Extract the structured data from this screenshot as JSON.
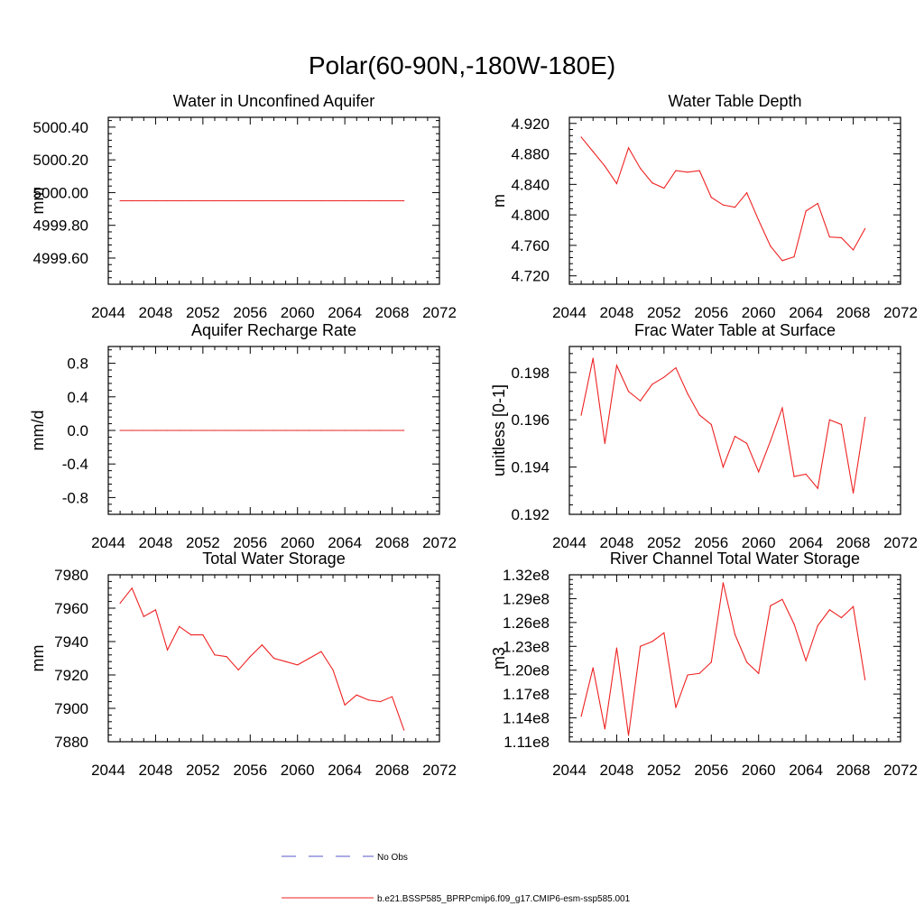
{
  "figure": {
    "title": "Polar(60-90N,-180W-180E)"
  },
  "chart_data": [
    {
      "type": "line",
      "title": "Water in Unconfined Aquifer",
      "xlabel": "",
      "ylabel": "mm",
      "xlim": [
        2044,
        2072
      ],
      "ylim": [
        4999.44,
        5000.46
      ],
      "xticks": [
        2044,
        2048,
        2052,
        2056,
        2060,
        2064,
        2068,
        2072
      ],
      "xtick_labels": [
        "2044",
        "2048",
        "2052",
        "2056",
        "2060",
        "2064",
        "2068",
        "2072"
      ],
      "yticks": [
        4999.6,
        4999.8,
        5000.0,
        5000.2,
        5000.4
      ],
      "ytick_labels": [
        "4999.60",
        "4999.80",
        "5000.00",
        "5000.20",
        "5000.40"
      ],
      "x": [
        2045,
        2046,
        2047,
        2048,
        2049,
        2050,
        2051,
        2052,
        2053,
        2054,
        2055,
        2056,
        2057,
        2058,
        2059,
        2060,
        2061,
        2062,
        2063,
        2064,
        2065,
        2066,
        2067,
        2068,
        2069
      ],
      "series": [
        {
          "values": [
            4999.95,
            4999.95,
            4999.95,
            4999.95,
            4999.95,
            4999.95,
            4999.95,
            4999.95,
            4999.95,
            4999.95,
            4999.95,
            4999.95,
            4999.95,
            4999.95,
            4999.95,
            4999.95,
            4999.95,
            4999.95,
            4999.95,
            4999.95,
            4999.95,
            4999.95,
            4999.95,
            4999.95,
            4999.95
          ]
        }
      ]
    },
    {
      "type": "line",
      "title": "Water Table Depth",
      "xlabel": "",
      "ylabel": "m",
      "xlim": [
        2044,
        2072
      ],
      "ylim": [
        4.709,
        4.928
      ],
      "xticks": [
        2044,
        2048,
        2052,
        2056,
        2060,
        2064,
        2068,
        2072
      ],
      "xtick_labels": [
        "2044",
        "2048",
        "2052",
        "2056",
        "2060",
        "2064",
        "2068",
        "2072"
      ],
      "yticks": [
        4.72,
        4.76,
        4.8,
        4.84,
        4.88,
        4.92
      ],
      "ytick_labels": [
        "4.720",
        "4.760",
        "4.800",
        "4.840",
        "4.880",
        "4.920"
      ],
      "x": [
        2045,
        2046,
        2047,
        2048,
        2049,
        2050,
        2051,
        2052,
        2053,
        2054,
        2055,
        2056,
        2057,
        2058,
        2059,
        2060,
        2061,
        2062,
        2063,
        2064,
        2065,
        2066,
        2067,
        2068,
        2069
      ],
      "series": [
        {
          "values": [
            4.902,
            4.883,
            4.864,
            4.841,
            4.888,
            4.861,
            4.842,
            4.835,
            4.858,
            4.856,
            4.858,
            4.823,
            4.813,
            4.81,
            4.829,
            4.793,
            4.759,
            4.74,
            4.745,
            4.805,
            4.815,
            4.771,
            4.77,
            4.754,
            4.782
          ]
        }
      ]
    },
    {
      "type": "line",
      "title": "Aquifer Recharge Rate",
      "xlabel": "",
      "ylabel": "mm/d",
      "xlim": [
        2044,
        2072
      ],
      "ylim": [
        -1.0,
        1.0
      ],
      "xticks": [
        2044,
        2048,
        2052,
        2056,
        2060,
        2064,
        2068,
        2072
      ],
      "xtick_labels": [
        "2044",
        "2048",
        "2052",
        "2056",
        "2060",
        "2064",
        "2068",
        "2072"
      ],
      "yticks": [
        -0.8,
        -0.4,
        0.0,
        0.4,
        0.8
      ],
      "ytick_labels": [
        "-0.8",
        "-0.4",
        "0.0",
        "0.4",
        "0.8"
      ],
      "x": [
        2045,
        2046,
        2047,
        2048,
        2049,
        2050,
        2051,
        2052,
        2053,
        2054,
        2055,
        2056,
        2057,
        2058,
        2059,
        2060,
        2061,
        2062,
        2063,
        2064,
        2065,
        2066,
        2067,
        2068,
        2069
      ],
      "series": [
        {
          "values": [
            0,
            0,
            0,
            0,
            0,
            0,
            0,
            0,
            0,
            0,
            0,
            0,
            0,
            0,
            0,
            0,
            0,
            0,
            0,
            0,
            0,
            0,
            0,
            0,
            0
          ]
        }
      ]
    },
    {
      "type": "line",
      "title": "Frac Water Table at Surface",
      "xlabel": "",
      "ylabel": "unitless [0-1]",
      "xlim": [
        2044,
        2072
      ],
      "ylim": [
        0.192,
        0.1991
      ],
      "xticks": [
        2044,
        2048,
        2052,
        2056,
        2060,
        2064,
        2068,
        2072
      ],
      "xtick_labels": [
        "2044",
        "2048",
        "2052",
        "2056",
        "2060",
        "2064",
        "2068",
        "2072"
      ],
      "yticks": [
        0.192,
        0.194,
        0.196,
        0.198
      ],
      "ytick_labels": [
        "0.192",
        "0.194",
        "0.196",
        "0.198"
      ],
      "x": [
        2045,
        2046,
        2047,
        2048,
        2049,
        2050,
        2051,
        2052,
        2053,
        2054,
        2055,
        2056,
        2057,
        2058,
        2059,
        2060,
        2061,
        2062,
        2063,
        2064,
        2065,
        2066,
        2067,
        2068,
        2069
      ],
      "series": [
        {
          "values": [
            0.1962,
            0.1986,
            0.195,
            0.1983,
            0.1972,
            0.1968,
            0.1975,
            0.1978,
            0.1982,
            0.1971,
            0.1962,
            0.1958,
            0.194,
            0.1953,
            0.195,
            0.1938,
            0.1951,
            0.1965,
            0.1936,
            0.1937,
            0.1931,
            0.196,
            0.1958,
            0.1929,
            0.1961
          ]
        }
      ]
    },
    {
      "type": "line",
      "title": "Total Water Storage",
      "xlabel": "",
      "ylabel": "mm",
      "xlim": [
        2044,
        2072
      ],
      "ylim": [
        7880,
        7980
      ],
      "xticks": [
        2044,
        2048,
        2052,
        2056,
        2060,
        2064,
        2068,
        2072
      ],
      "xtick_labels": [
        "2044",
        "2048",
        "2052",
        "2056",
        "2060",
        "2064",
        "2068",
        "2072"
      ],
      "yticks": [
        7880,
        7900,
        7920,
        7940,
        7960,
        7980
      ],
      "ytick_labels": [
        "7880",
        "7900",
        "7920",
        "7940",
        "7960",
        "7980"
      ],
      "x": [
        2045,
        2046,
        2047,
        2048,
        2049,
        2050,
        2051,
        2052,
        2053,
        2054,
        2055,
        2056,
        2057,
        2058,
        2059,
        2060,
        2061,
        2062,
        2063,
        2064,
        2065,
        2066,
        2067,
        2068,
        2069
      ],
      "series": [
        {
          "values": [
            7963,
            7972,
            7955,
            7959,
            7935,
            7949,
            7944,
            7944,
            7932,
            7931,
            7923,
            7931,
            7938,
            7930,
            7928,
            7926,
            7930,
            7934,
            7923,
            7902,
            7908,
            7905,
            7904,
            7907,
            7887
          ]
        }
      ]
    },
    {
      "type": "line",
      "title": "River Channel Total Water Storage",
      "xlabel": "",
      "ylabel": "m3",
      "xlim": [
        2044,
        2072
      ],
      "ylim": [
        111000000.0,
        132000000.0
      ],
      "xticks": [
        2044,
        2048,
        2052,
        2056,
        2060,
        2064,
        2068,
        2072
      ],
      "xtick_labels": [
        "2044",
        "2048",
        "2052",
        "2056",
        "2060",
        "2064",
        "2068",
        "2072"
      ],
      "yticks": [
        111000000.0,
        114000000.0,
        117000000.0,
        120000000.0,
        123000000.0,
        126000000.0,
        129000000.0,
        132000000.0
      ],
      "ytick_labels": [
        "1.11e8",
        "1.14e8",
        "1.17e8",
        "1.20e8",
        "1.23e8",
        "1.26e8",
        "1.29e8",
        "1.32e8"
      ],
      "x": [
        2045,
        2046,
        2047,
        2048,
        2049,
        2050,
        2051,
        2052,
        2053,
        2054,
        2055,
        2056,
        2057,
        2058,
        2059,
        2060,
        2061,
        2062,
        2063,
        2064,
        2065,
        2066,
        2067,
        2068,
        2069
      ],
      "series": [
        {
          "values": [
            114200000.0,
            120300000.0,
            112600000.0,
            122800000.0,
            111800000.0,
            123000000.0,
            123600000.0,
            124700000.0,
            115300000.0,
            119400000.0,
            119600000.0,
            121000000.0,
            131000000.0,
            124500000.0,
            121000000.0,
            119600000.0,
            128100000.0,
            128900000.0,
            125800000.0,
            121200000.0,
            125600000.0,
            127600000.0,
            126600000.0,
            128000000.0,
            118800000.0
          ]
        }
      ]
    }
  ],
  "legend": {
    "items": [
      {
        "label": "No Obs",
        "color": "#5555cc",
        "dash": "dashed"
      },
      {
        "label": "b.e21.BSSP585_BPRPcmip6.f09_g17.CMIP6-esm-ssp585.001",
        "color": "#ee2222",
        "dash": "solid"
      }
    ]
  },
  "colors": {
    "series_line": "#ee2222",
    "axes": "#000000"
  }
}
